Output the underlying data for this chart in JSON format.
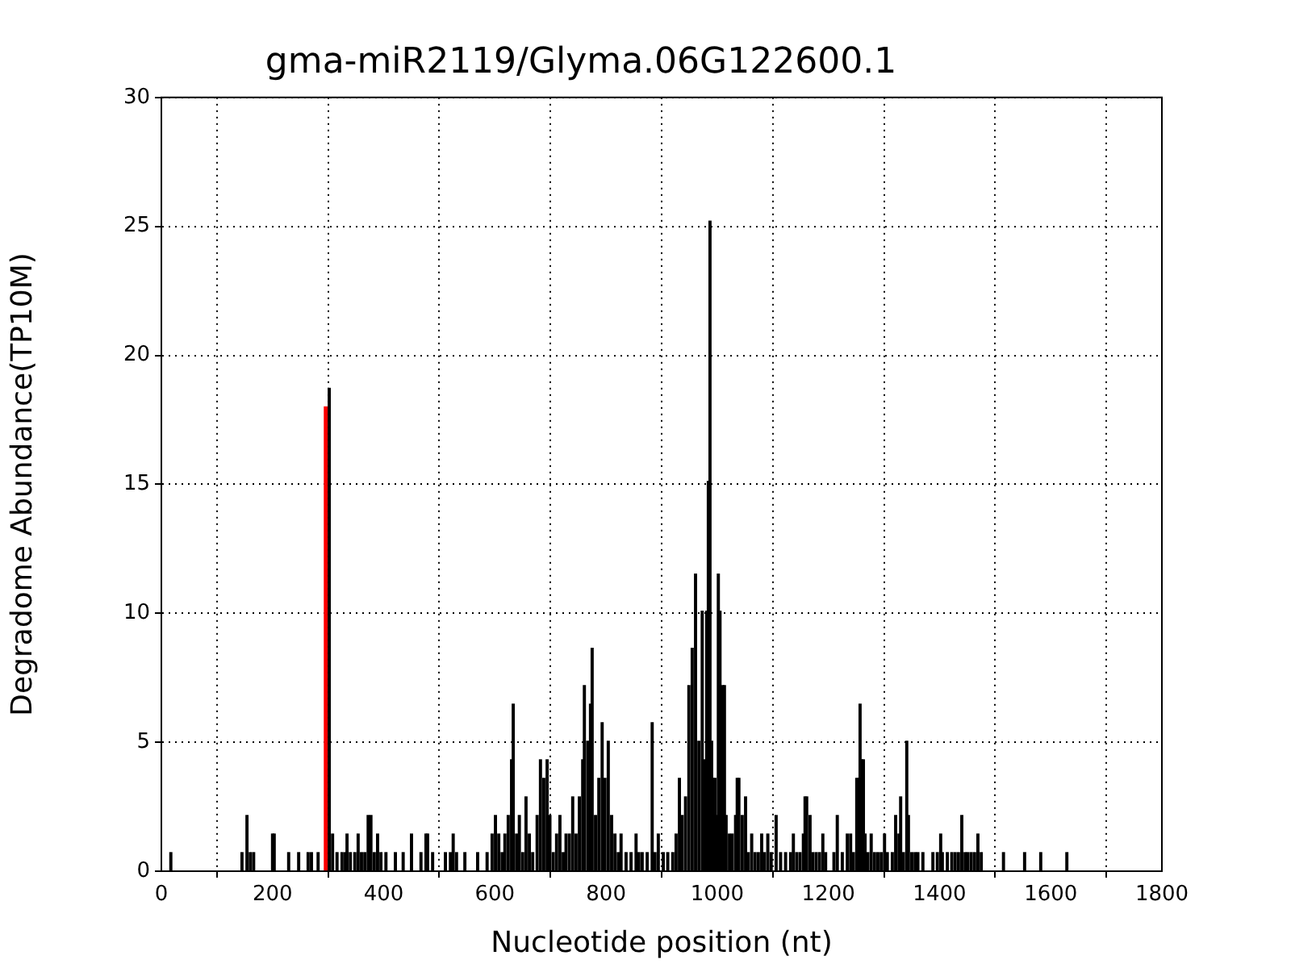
{
  "chart_data": {
    "type": "bar",
    "title": "gma-miR2119/Glyma.06G122600.1",
    "xlabel": "Nucleotide position (nt)",
    "ylabel": "Degradome Abundance(TP10M)",
    "xlim": [
      0,
      1800
    ],
    "xticks": [
      0,
      200,
      400,
      600,
      800,
      1000,
      1200,
      1400,
      1600,
      1800
    ],
    "ylim": [
      0,
      30
    ],
    "yticks": [
      0,
      5,
      10,
      15,
      20,
      25,
      30
    ],
    "grid": true,
    "series": [
      {
        "color": "#000000",
        "x": [
          17,
          145,
          154,
          160,
          166,
          200,
          203,
          229,
          247,
          264,
          270,
          282,
          302,
          308,
          316,
          325,
          331,
          334,
          340,
          348,
          354,
          360,
          366,
          372,
          377,
          383,
          389,
          395,
          404,
          421,
          435,
          450,
          467,
          476,
          479,
          488,
          511,
          520,
          525,
          531,
          546,
          569,
          586,
          595,
          601,
          607,
          613,
          618,
          624,
          630,
          633,
          639,
          644,
          650,
          656,
          662,
          668,
          676,
          682,
          688,
          694,
          699,
          705,
          711,
          717,
          723,
          728,
          734,
          740,
          746,
          752,
          758,
          761,
          767,
          772,
          775,
          781,
          787,
          793,
          798,
          804,
          810,
          816,
          822,
          827,
          836,
          845,
          854,
          859,
          865,
          874,
          883,
          888,
          894,
          903,
          911,
          920,
          926,
          932,
          937,
          943,
          949,
          955,
          961,
          967,
          973,
          978,
          981,
          984,
          987,
          990,
          993,
          996,
          999,
          1002,
          1005,
          1008,
          1010,
          1013,
          1016,
          1022,
          1027,
          1033,
          1036,
          1039,
          1045,
          1051,
          1056,
          1062,
          1068,
          1074,
          1080,
          1085,
          1091,
          1097,
          1106,
          1114,
          1123,
          1132,
          1137,
          1143,
          1149,
          1155,
          1158,
          1161,
          1167,
          1172,
          1178,
          1184,
          1190,
          1195,
          1210,
          1216,
          1225,
          1234,
          1240,
          1245,
          1251,
          1254,
          1257,
          1260,
          1263,
          1266,
          1271,
          1277,
          1283,
          1289,
          1295,
          1301,
          1306,
          1315,
          1321,
          1327,
          1330,
          1335,
          1341,
          1344,
          1350,
          1356,
          1361,
          1370,
          1388,
          1396,
          1402,
          1405,
          1414,
          1422,
          1428,
          1434,
          1440,
          1446,
          1451,
          1457,
          1463,
          1469,
          1475,
          1515,
          1553,
          1582,
          1629
        ],
        "values": [
          0.72,
          0.72,
          2.16,
          0.72,
          0.72,
          1.44,
          1.44,
          0.72,
          0.72,
          0.72,
          0.72,
          0.72,
          18.72,
          1.44,
          0.72,
          0.72,
          0.72,
          1.44,
          0.72,
          0.72,
          1.44,
          0.72,
          0.72,
          2.16,
          2.16,
          0.72,
          1.44,
          0.72,
          0.72,
          0.72,
          0.72,
          1.44,
          0.72,
          1.44,
          1.44,
          0.72,
          0.72,
          0.72,
          1.44,
          0.72,
          0.72,
          0.72,
          0.72,
          1.44,
          2.16,
          1.44,
          0.72,
          1.44,
          2.16,
          4.32,
          6.48,
          1.44,
          2.16,
          0.72,
          2.88,
          1.44,
          0.72,
          2.16,
          4.32,
          3.6,
          4.32,
          2.16,
          0.72,
          1.44,
          2.16,
          0.72,
          1.44,
          1.44,
          2.88,
          1.44,
          2.88,
          4.32,
          7.2,
          5.04,
          6.48,
          8.64,
          2.16,
          3.6,
          5.76,
          3.6,
          5.04,
          2.16,
          1.44,
          0.72,
          1.44,
          0.72,
          0.72,
          1.44,
          0.72,
          0.72,
          0.72,
          5.76,
          0.72,
          1.44,
          0.72,
          0.72,
          0.72,
          1.44,
          3.6,
          2.16,
          2.88,
          7.2,
          8.64,
          11.52,
          5.04,
          10.08,
          4.32,
          10.08,
          15.12,
          25.2,
          5.04,
          3.6,
          3.6,
          2.16,
          11.52,
          10.08,
          null,
          7.2,
          7.2,
          2.16,
          1.44,
          1.44,
          2.16,
          3.6,
          3.6,
          2.16,
          2.88,
          0.72,
          1.44,
          0.72,
          0.72,
          1.44,
          0.72,
          1.44,
          0.72,
          2.16,
          0.72,
          0.72,
          0.72,
          1.44,
          0.72,
          0.72,
          1.44,
          2.88,
          2.88,
          2.16,
          0.72,
          0.72,
          0.72,
          1.44,
          0.72,
          0.72,
          2.16,
          0.72,
          1.44,
          1.44,
          0.72,
          3.6,
          3.6,
          6.48,
          4.32,
          4.32,
          1.44,
          0.72,
          1.44,
          0.72,
          0.72,
          0.72,
          1.44,
          0.72,
          0.72,
          2.16,
          1.44,
          2.88,
          0.72,
          5.04,
          2.16,
          0.72,
          0.72,
          0.72,
          0.72,
          0.72,
          0.72,
          1.44,
          0.72,
          0.72,
          0.72,
          0.72,
          0.72,
          2.16,
          0.72,
          0.72,
          0.72,
          0.72,
          1.44,
          0.72,
          0.72,
          0.72,
          0.72,
          0.72
        ]
      },
      {
        "color": "#ff0000",
        "x": [
          296
        ],
        "values": [
          18
        ]
      }
    ]
  }
}
